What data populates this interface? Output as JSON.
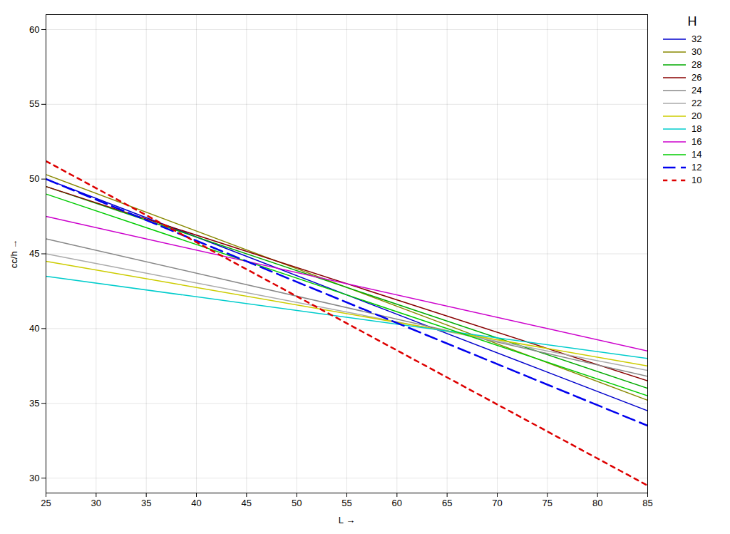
{
  "chart_data": {
    "type": "line",
    "xlabel": "L",
    "ylabel": "cc/h",
    "legend_title": "H",
    "x": [
      25,
      85
    ],
    "series": [
      {
        "name": "32",
        "color": "#0000cc",
        "line_style": "solid",
        "values": [
          50.0,
          34.5
        ]
      },
      {
        "name": "30",
        "color": "#888800",
        "line_style": "solid",
        "values": [
          50.3,
          35.2
        ]
      },
      {
        "name": "28",
        "color": "#00aa00",
        "line_style": "solid",
        "values": [
          49.5,
          36.0
        ]
      },
      {
        "name": "26",
        "color": "#880000",
        "line_style": "solid",
        "values": [
          49.5,
          36.5
        ]
      },
      {
        "name": "24",
        "color": "#888888",
        "line_style": "solid",
        "values": [
          46.0,
          36.8
        ]
      },
      {
        "name": "22",
        "color": "#aaaaaa",
        "line_style": "solid",
        "values": [
          45.0,
          37.2
        ]
      },
      {
        "name": "20",
        "color": "#cccc00",
        "line_style": "solid",
        "values": [
          44.5,
          37.5
        ]
      },
      {
        "name": "18",
        "color": "#00cccc",
        "line_style": "solid",
        "values": [
          43.5,
          38.0
        ]
      },
      {
        "name": "16",
        "color": "#cc00cc",
        "line_style": "solid",
        "values": [
          47.5,
          38.5
        ]
      },
      {
        "name": "14",
        "color": "#00cc00",
        "line_style": "solid",
        "values": [
          49.0,
          35.5
        ]
      },
      {
        "name": "12",
        "color": "#0000ee",
        "line_style": "dashed",
        "values": [
          50.0,
          33.5
        ]
      },
      {
        "name": "10",
        "color": "#dd0000",
        "line_style": "dotted",
        "values": [
          51.2,
          29.5
        ]
      }
    ],
    "xlim": [
      25,
      85
    ],
    "ylim": [
      29,
      61
    ],
    "xticks": [
      25,
      30,
      35,
      40,
      45,
      50,
      55,
      60,
      65,
      70,
      75,
      80,
      85
    ],
    "yticks": [
      30,
      35,
      40,
      45,
      50,
      55,
      60
    ],
    "grid": true,
    "legend": "upper right"
  }
}
